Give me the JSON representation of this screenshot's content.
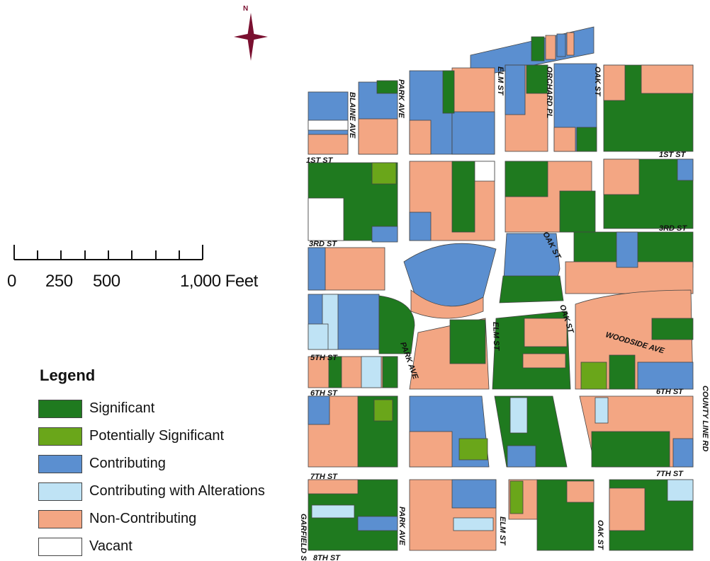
{
  "north_arrow": {
    "label": "N",
    "color": "#7a1030"
  },
  "scale": {
    "labels": [
      "0",
      "250",
      "500",
      "1,000 Feet"
    ]
  },
  "legend": {
    "title": "Legend",
    "items": [
      {
        "label": "Significant",
        "color": "#1f7a1f"
      },
      {
        "label": "Potentially Significant",
        "color": "#6aa61a"
      },
      {
        "label": "Contributing",
        "color": "#5b8fd0"
      },
      {
        "label": "Contributing with Alterations",
        "color": "#bfe3f5"
      },
      {
        "label": "Non-Contributing",
        "color": "#f3a683"
      },
      {
        "label": "Vacant",
        "color": "#ffffff"
      }
    ]
  },
  "streets": {
    "blaine": "BLAINE AVE",
    "park": "PARK AVE",
    "elm": "ELM ST",
    "orchard": "ORCHARD PL",
    "oak": "OAK ST",
    "first": "1ST ST",
    "third": "3RD ST",
    "fifth": "5TH ST",
    "sixth": "6TH ST",
    "seventh": "7TH ST",
    "eighth": "8TH ST",
    "garfield": "GARFIELD ST",
    "woodside": "WOODSIDE AVE",
    "county": "COUNTY LINE RD"
  }
}
